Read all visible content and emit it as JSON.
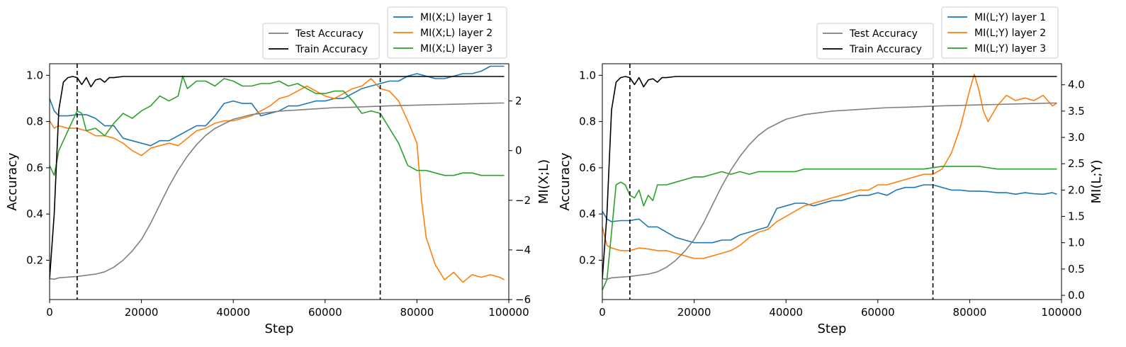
{
  "chart_data": [
    {
      "type": "line",
      "xlabel": "Step",
      "ylabel": "Accuracy",
      "y2label": "MI(X;L)",
      "xlim": [
        0,
        100000
      ],
      "ylim": [
        0.03,
        1.05
      ],
      "y2lim": [
        -6,
        3.5
      ],
      "x_ticks": [
        0,
        20000,
        40000,
        60000,
        80000,
        100000
      ],
      "y_ticks": [
        0.2,
        0.4,
        0.6,
        0.8,
        1.0
      ],
      "y2_ticks": [
        -6,
        -4,
        -2,
        0,
        2
      ],
      "vlines": [
        6000,
        72000
      ],
      "legends": [
        {
          "placement": "top-center-right",
          "entries": [
            "Test Accuracy",
            "Train Accuracy"
          ]
        },
        {
          "placement": "top-right",
          "entries": [
            "MI(X;L) layer 1",
            "MI(X;L) layer 2",
            "MI(X;L) layer 3"
          ]
        }
      ],
      "series": [
        {
          "name": "Test Accuracy",
          "axis": "left",
          "color": "#808080",
          "x": [
            0,
            1000,
            2000,
            4000,
            6000,
            8000,
            10000,
            12000,
            14000,
            16000,
            18000,
            20000,
            22000,
            24000,
            26000,
            28000,
            30000,
            32000,
            34000,
            36000,
            38000,
            40000,
            42000,
            44000,
            46000,
            48000,
            50000,
            54000,
            58000,
            62000,
            66000,
            70000,
            74000,
            78000,
            82000,
            86000,
            90000,
            94000,
            98000,
            99000
          ],
          "y": [
            0.12,
            0.118,
            0.124,
            0.127,
            0.13,
            0.135,
            0.14,
            0.15,
            0.17,
            0.2,
            0.24,
            0.29,
            0.36,
            0.44,
            0.52,
            0.59,
            0.65,
            0.7,
            0.74,
            0.77,
            0.79,
            0.81,
            0.82,
            0.83,
            0.835,
            0.84,
            0.845,
            0.85,
            0.855,
            0.86,
            0.862,
            0.865,
            0.868,
            0.87,
            0.872,
            0.874,
            0.876,
            0.878,
            0.88,
            0.88
          ]
        },
        {
          "name": "Train Accuracy",
          "axis": "left",
          "color": "#000000",
          "x": [
            0,
            1000,
            2000,
            3000,
            4000,
            5000,
            6000,
            7000,
            8000,
            9000,
            10000,
            11000,
            12000,
            13000,
            14000,
            16000,
            20000,
            40000,
            60000,
            80000,
            99000
          ],
          "y": [
            0.12,
            0.4,
            0.85,
            0.97,
            0.99,
            0.995,
            0.99,
            0.96,
            0.99,
            0.95,
            0.98,
            0.985,
            0.97,
            0.99,
            0.99,
            0.995,
            0.995,
            0.995,
            0.995,
            0.995,
            0.995
          ]
        },
        {
          "name": "MI(X;L) layer 1",
          "axis": "right",
          "color": "#1f77b4",
          "x": [
            0,
            1000,
            2000,
            4000,
            6000,
            8000,
            10000,
            12000,
            14000,
            16000,
            18000,
            20000,
            22000,
            24000,
            26000,
            28000,
            30000,
            32000,
            34000,
            36000,
            38000,
            40000,
            42000,
            44000,
            46000,
            48000,
            50000,
            52000,
            54000,
            56000,
            58000,
            60000,
            62000,
            64000,
            66000,
            68000,
            70000,
            72000,
            74000,
            76000,
            78000,
            80000,
            82000,
            84000,
            86000,
            88000,
            90000,
            92000,
            94000,
            96000,
            98000,
            99000
          ],
          "y": [
            2.1,
            1.6,
            1.4,
            1.4,
            1.45,
            1.45,
            1.3,
            1.0,
            1.0,
            0.5,
            0.4,
            0.3,
            0.2,
            0.4,
            0.4,
            0.6,
            0.8,
            1.0,
            1.0,
            1.4,
            1.9,
            2.0,
            1.9,
            1.9,
            1.4,
            1.5,
            1.6,
            1.8,
            1.8,
            1.9,
            2.0,
            2.0,
            2.1,
            2.1,
            2.3,
            2.5,
            2.6,
            2.7,
            2.8,
            2.8,
            3.0,
            3.1,
            3.0,
            2.9,
            2.9,
            3.0,
            3.1,
            3.1,
            3.2,
            3.4,
            3.4,
            3.4
          ]
        },
        {
          "name": "MI(X;L) layer 2",
          "axis": "right",
          "color": "#ff7f0e",
          "x": [
            0,
            1000,
            2000,
            4000,
            6000,
            8000,
            10000,
            12000,
            14000,
            16000,
            18000,
            20000,
            22000,
            24000,
            26000,
            28000,
            30000,
            32000,
            34000,
            36000,
            38000,
            40000,
            42000,
            44000,
            46000,
            48000,
            50000,
            52000,
            54000,
            56000,
            58000,
            60000,
            62000,
            64000,
            66000,
            68000,
            70000,
            72000,
            74000,
            76000,
            78000,
            80000,
            81000,
            82000,
            84000,
            86000,
            88000,
            90000,
            92000,
            94000,
            96000,
            98000,
            99000
          ],
          "y": [
            1.2,
            0.9,
            1.0,
            0.9,
            0.9,
            0.8,
            0.6,
            0.6,
            0.5,
            0.3,
            0.0,
            -0.2,
            0.1,
            0.2,
            0.3,
            0.2,
            0.5,
            0.8,
            0.9,
            1.1,
            1.2,
            1.2,
            1.3,
            1.4,
            1.6,
            1.8,
            2.1,
            2.2,
            2.4,
            2.6,
            2.4,
            2.2,
            2.1,
            2.3,
            2.5,
            2.6,
            2.9,
            2.5,
            2.4,
            2.0,
            1.2,
            0.3,
            -2.0,
            -3.5,
            -4.6,
            -5.2,
            -4.9,
            -5.3,
            -5.0,
            -5.1,
            -5.0,
            -5.1,
            -5.2
          ]
        },
        {
          "name": "MI(X;L) layer 3",
          "axis": "right",
          "color": "#2ca02c",
          "x": [
            0,
            1000,
            2000,
            4000,
            6000,
            7000,
            8000,
            10000,
            12000,
            14000,
            16000,
            18000,
            20000,
            22000,
            24000,
            26000,
            28000,
            29000,
            30000,
            32000,
            34000,
            36000,
            38000,
            40000,
            42000,
            44000,
            46000,
            48000,
            50000,
            52000,
            54000,
            56000,
            58000,
            60000,
            62000,
            64000,
            66000,
            68000,
            70000,
            72000,
            74000,
            76000,
            78000,
            80000,
            82000,
            84000,
            86000,
            88000,
            90000,
            92000,
            94000,
            96000,
            98000,
            99000
          ],
          "y": [
            -0.6,
            -1.0,
            0.0,
            0.8,
            1.6,
            1.5,
            0.8,
            0.9,
            0.6,
            1.1,
            1.5,
            1.3,
            1.6,
            1.8,
            2.2,
            2.0,
            2.2,
            3.0,
            2.5,
            2.8,
            2.8,
            2.6,
            2.9,
            2.8,
            2.6,
            2.6,
            2.7,
            2.7,
            2.8,
            2.6,
            2.7,
            2.5,
            2.3,
            2.3,
            2.4,
            2.4,
            2.0,
            1.5,
            1.6,
            1.5,
            0.9,
            0.3,
            -0.6,
            -0.8,
            -0.8,
            -0.9,
            -1.0,
            -1.0,
            -0.9,
            -0.9,
            -1.0,
            -1.0,
            -1.0,
            -1.0
          ]
        }
      ]
    },
    {
      "type": "line",
      "xlabel": "Step",
      "ylabel": "Accuracy",
      "y2label": "MI(L;Y)",
      "xlim": [
        0,
        100000
      ],
      "ylim": [
        0.03,
        1.05
      ],
      "y2lim": [
        -0.08,
        4.4
      ],
      "x_ticks": [
        0,
        20000,
        40000,
        60000,
        80000,
        100000
      ],
      "y_ticks": [
        0.2,
        0.4,
        0.6,
        0.8,
        1.0
      ],
      "y2_ticks": [
        0.0,
        0.5,
        1.0,
        1.5,
        2.0,
        2.5,
        3.0,
        3.5,
        4.0
      ],
      "vlines": [
        6000,
        72000
      ],
      "legends": [
        {
          "placement": "top-center-right",
          "entries": [
            "Test Accuracy",
            "Train Accuracy"
          ]
        },
        {
          "placement": "top-right",
          "entries": [
            "MI(L;Y) layer 1",
            "MI(L;Y) layer 2",
            "MI(L;Y) layer 3"
          ]
        }
      ],
      "series": [
        {
          "name": "Test Accuracy",
          "axis": "left",
          "color": "#808080",
          "x": [
            0,
            1000,
            2000,
            4000,
            6000,
            8000,
            10000,
            12000,
            14000,
            16000,
            18000,
            20000,
            22000,
            24000,
            26000,
            28000,
            30000,
            32000,
            34000,
            36000,
            38000,
            40000,
            42000,
            44000,
            46000,
            48000,
            50000,
            54000,
            58000,
            62000,
            66000,
            70000,
            74000,
            78000,
            82000,
            86000,
            90000,
            94000,
            98000,
            99000
          ],
          "y": [
            0.12,
            0.118,
            0.124,
            0.127,
            0.13,
            0.135,
            0.14,
            0.15,
            0.17,
            0.2,
            0.24,
            0.29,
            0.36,
            0.44,
            0.52,
            0.59,
            0.65,
            0.7,
            0.74,
            0.77,
            0.79,
            0.81,
            0.82,
            0.83,
            0.835,
            0.84,
            0.845,
            0.85,
            0.855,
            0.86,
            0.862,
            0.865,
            0.868,
            0.87,
            0.872,
            0.874,
            0.876,
            0.878,
            0.88,
            0.88
          ]
        },
        {
          "name": "Train Accuracy",
          "axis": "left",
          "color": "#000000",
          "x": [
            0,
            1000,
            2000,
            3000,
            4000,
            5000,
            6000,
            7000,
            8000,
            9000,
            10000,
            11000,
            12000,
            13000,
            14000,
            16000,
            20000,
            40000,
            60000,
            80000,
            99000
          ],
          "y": [
            0.12,
            0.4,
            0.85,
            0.97,
            0.99,
            0.995,
            0.99,
            0.96,
            0.99,
            0.95,
            0.98,
            0.985,
            0.97,
            0.99,
            0.99,
            0.995,
            0.995,
            0.995,
            0.995,
            0.995,
            0.995
          ]
        },
        {
          "name": "MI(L;Y) layer 1",
          "axis": "right",
          "color": "#1f77b4",
          "x": [
            0,
            1000,
            2000,
            4000,
            6000,
            8000,
            10000,
            12000,
            14000,
            16000,
            18000,
            20000,
            22000,
            24000,
            26000,
            28000,
            30000,
            32000,
            34000,
            36000,
            38000,
            40000,
            42000,
            44000,
            46000,
            48000,
            50000,
            52000,
            54000,
            56000,
            58000,
            60000,
            62000,
            64000,
            66000,
            68000,
            70000,
            72000,
            74000,
            76000,
            78000,
            80000,
            82000,
            84000,
            86000,
            88000,
            90000,
            92000,
            94000,
            96000,
            98000,
            99000
          ],
          "y": [
            1.6,
            1.45,
            1.4,
            1.42,
            1.42,
            1.45,
            1.3,
            1.3,
            1.2,
            1.1,
            1.05,
            1.0,
            1.0,
            1.0,
            1.05,
            1.05,
            1.15,
            1.2,
            1.25,
            1.3,
            1.65,
            1.7,
            1.75,
            1.75,
            1.7,
            1.75,
            1.8,
            1.8,
            1.85,
            1.9,
            1.9,
            1.95,
            1.9,
            2.0,
            2.05,
            2.05,
            2.1,
            2.1,
            2.05,
            2.0,
            2.0,
            1.98,
            1.98,
            1.97,
            1.95,
            1.95,
            1.92,
            1.95,
            1.93,
            1.92,
            1.95,
            1.92
          ]
        },
        {
          "name": "MI(L;Y) layer 2",
          "axis": "right",
          "color": "#ff7f0e",
          "x": [
            0,
            1000,
            2000,
            4000,
            6000,
            8000,
            10000,
            12000,
            14000,
            16000,
            18000,
            20000,
            22000,
            24000,
            26000,
            28000,
            30000,
            32000,
            34000,
            36000,
            38000,
            40000,
            42000,
            44000,
            46000,
            48000,
            50000,
            52000,
            54000,
            56000,
            58000,
            60000,
            62000,
            64000,
            66000,
            68000,
            70000,
            72000,
            74000,
            76000,
            78000,
            80000,
            81000,
            82000,
            83000,
            84000,
            86000,
            88000,
            90000,
            92000,
            94000,
            96000,
            98000,
            99000
          ],
          "y": [
            1.3,
            0.95,
            0.9,
            0.85,
            0.85,
            0.9,
            0.88,
            0.85,
            0.85,
            0.8,
            0.75,
            0.7,
            0.7,
            0.75,
            0.8,
            0.85,
            0.95,
            1.1,
            1.2,
            1.25,
            1.4,
            1.5,
            1.6,
            1.7,
            1.75,
            1.8,
            1.85,
            1.9,
            1.95,
            2.0,
            2.0,
            2.1,
            2.1,
            2.15,
            2.2,
            2.25,
            2.3,
            2.3,
            2.4,
            2.7,
            3.2,
            3.9,
            4.2,
            3.9,
            3.5,
            3.3,
            3.6,
            3.8,
            3.7,
            3.75,
            3.7,
            3.8,
            3.6,
            3.65
          ]
        },
        {
          "name": "MI(L;Y) layer 3",
          "axis": "right",
          "color": "#2ca02c",
          "x": [
            0,
            1000,
            2000,
            3000,
            4000,
            5000,
            6000,
            7000,
            8000,
            9000,
            10000,
            11000,
            12000,
            14000,
            16000,
            18000,
            20000,
            22000,
            24000,
            26000,
            28000,
            30000,
            32000,
            34000,
            36000,
            38000,
            40000,
            42000,
            44000,
            46000,
            48000,
            50000,
            54000,
            58000,
            62000,
            66000,
            70000,
            74000,
            78000,
            82000,
            86000,
            90000,
            94000,
            98000,
            99000
          ],
          "y": [
            0.1,
            0.3,
            1.2,
            2.1,
            2.15,
            2.1,
            1.9,
            1.85,
            2.0,
            1.7,
            1.9,
            1.8,
            2.1,
            2.1,
            2.15,
            2.2,
            2.25,
            2.25,
            2.3,
            2.35,
            2.3,
            2.35,
            2.3,
            2.35,
            2.35,
            2.35,
            2.35,
            2.35,
            2.4,
            2.4,
            2.4,
            2.4,
            2.4,
            2.4,
            2.4,
            2.4,
            2.4,
            2.45,
            2.45,
            2.45,
            2.4,
            2.4,
            2.4,
            2.4,
            2.4
          ]
        }
      ]
    }
  ]
}
